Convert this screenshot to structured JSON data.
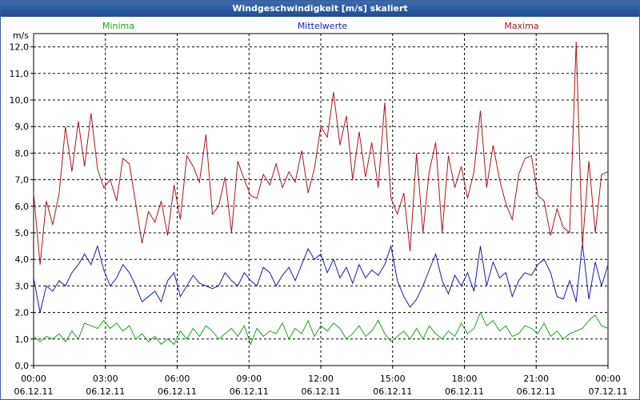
{
  "window": {
    "title": "Windgeschwindigkeit [m/s] skaliert"
  },
  "colors": {
    "minima": "#13a813",
    "mittel": "#1a1aae",
    "maxima": "#b01418",
    "grid": "#000000",
    "title_bg": "#2a5aa0"
  },
  "chart_data": {
    "type": "line",
    "title": "Windgeschwindigkeit [m/s] skaliert",
    "ylabel": "m/s",
    "ylim": [
      0,
      12.5
    ],
    "xlim": [
      0,
      24
    ],
    "grid": true,
    "legend_placement": "top",
    "y_ticks": [
      "0,0",
      "1,0",
      "2,0",
      "3,0",
      "4,0",
      "5,0",
      "6,0",
      "7,0",
      "8,0",
      "9,0",
      "10,0",
      "11,0",
      "12,0"
    ],
    "x_ticks": [
      {
        "time": "00:00",
        "date": "06.12.11"
      },
      {
        "time": "03:00",
        "date": "06.12.11"
      },
      {
        "time": "06:00",
        "date": "06.12.11"
      },
      {
        "time": "09:00",
        "date": "06.12.11"
      },
      {
        "time": "12:00",
        "date": "06.12.11"
      },
      {
        "time": "15:00",
        "date": "06.12.11"
      },
      {
        "time": "18:00",
        "date": "06.12.11"
      },
      {
        "time": "21:00",
        "date": "06.12.11"
      },
      {
        "time": "00:00",
        "date": "07.12.11"
      }
    ],
    "series": [
      {
        "name": "Minima",
        "x": [
          0,
          0.27,
          0.53,
          0.8,
          1.07,
          1.33,
          1.6,
          1.87,
          2.13,
          2.4,
          2.67,
          2.93,
          3.2,
          3.47,
          3.73,
          4,
          4.27,
          4.53,
          4.8,
          5.07,
          5.33,
          5.6,
          5.87,
          6.13,
          6.4,
          6.67,
          6.93,
          7.2,
          7.47,
          7.73,
          8,
          8.27,
          8.53,
          8.8,
          9.07,
          9.33,
          9.6,
          9.87,
          10.13,
          10.4,
          10.67,
          10.93,
          11.2,
          11.47,
          11.73,
          12,
          12.27,
          12.53,
          12.8,
          13.07,
          13.33,
          13.6,
          13.87,
          14.13,
          14.4,
          14.67,
          14.93,
          15.2,
          15.47,
          15.73,
          16,
          16.27,
          16.53,
          16.8,
          17.07,
          17.33,
          17.6,
          17.87,
          18.13,
          18.4,
          18.67,
          18.93,
          19.2,
          19.47,
          19.73,
          20,
          20.27,
          20.53,
          20.8,
          21.07,
          21.33,
          21.6,
          21.87,
          22.13,
          22.4,
          22.67,
          22.93,
          23.2,
          23.47,
          23.73,
          24
        ],
        "values": [
          1.1,
          0.9,
          1.1,
          1.0,
          1.2,
          0.9,
          1.3,
          1.0,
          1.6,
          1.5,
          1.4,
          1.7,
          1.4,
          1.6,
          1.3,
          1.5,
          1.0,
          1.2,
          0.9,
          1.1,
          0.8,
          1.0,
          0.8,
          1.3,
          1.0,
          1.4,
          1.1,
          1.5,
          1.3,
          1.0,
          1.2,
          1.4,
          1.1,
          1.5,
          0.8,
          1.4,
          1.1,
          1.3,
          1.2,
          1.6,
          1.0,
          1.4,
          1.2,
          1.7,
          1.1,
          1.5,
          1.3,
          1.6,
          1.4,
          1.0,
          1.2,
          1.5,
          1.1,
          1.3,
          1.7,
          1.2,
          0.9,
          1.1,
          1.3,
          1.0,
          1.4,
          1.0,
          1.5,
          1.2,
          1.0,
          1.3,
          1.1,
          1.6,
          1.2,
          1.4,
          2.0,
          1.5,
          1.7,
          1.3,
          1.5,
          1.1,
          1.2,
          1.5,
          1.4,
          1.2,
          1.6,
          1.1,
          1.3,
          1.0,
          1.2,
          1.3,
          1.4,
          1.7,
          1.9,
          1.5,
          1.4
        ]
      },
      {
        "name": "Mittelwerte",
        "x": [
          0,
          0.27,
          0.53,
          0.8,
          1.07,
          1.33,
          1.6,
          1.87,
          2.13,
          2.4,
          2.67,
          2.93,
          3.2,
          3.47,
          3.73,
          4,
          4.27,
          4.53,
          4.8,
          5.07,
          5.33,
          5.6,
          5.87,
          6.13,
          6.4,
          6.67,
          6.93,
          7.2,
          7.47,
          7.73,
          8,
          8.27,
          8.53,
          8.8,
          9.07,
          9.33,
          9.6,
          9.87,
          10.13,
          10.4,
          10.67,
          10.93,
          11.2,
          11.47,
          11.73,
          12,
          12.27,
          12.53,
          12.8,
          13.07,
          13.33,
          13.6,
          13.87,
          14.13,
          14.4,
          14.67,
          14.93,
          15.2,
          15.47,
          15.73,
          16,
          16.27,
          16.53,
          16.8,
          17.07,
          17.33,
          17.6,
          17.87,
          18.13,
          18.4,
          18.67,
          18.93,
          19.2,
          19.47,
          19.73,
          20,
          20.27,
          20.53,
          20.8,
          21.07,
          21.33,
          21.6,
          21.87,
          22.13,
          22.4,
          22.67,
          22.93,
          23.2,
          23.47,
          23.73,
          24
        ],
        "values": [
          3.3,
          2.0,
          3.0,
          2.8,
          3.2,
          3.0,
          3.5,
          3.8,
          4.2,
          3.8,
          4.5,
          3.6,
          3.0,
          3.3,
          3.8,
          3.5,
          3.0,
          2.4,
          2.6,
          2.8,
          2.4,
          3.2,
          3.5,
          2.6,
          3.0,
          3.4,
          3.1,
          3.0,
          2.9,
          3.0,
          3.5,
          3.2,
          3.0,
          3.5,
          3.2,
          3.0,
          3.7,
          3.5,
          3.0,
          3.4,
          3.7,
          3.2,
          3.8,
          4.4,
          4.0,
          4.2,
          3.5,
          4.0,
          3.3,
          3.7,
          3.1,
          3.8,
          3.3,
          3.6,
          3.4,
          3.8,
          4.5,
          3.2,
          2.6,
          2.2,
          2.5,
          3.0,
          3.6,
          4.2,
          3.2,
          2.7,
          3.4,
          3.0,
          3.5,
          2.8,
          4.5,
          3.0,
          3.9,
          3.3,
          3.5,
          2.6,
          3.2,
          3.5,
          3.4,
          3.8,
          4.0,
          3.5,
          2.6,
          2.5,
          3.2,
          2.4,
          4.6,
          2.5,
          3.9,
          3.0,
          3.8
        ]
      },
      {
        "name": "Maxima",
        "x": [
          0,
          0.27,
          0.53,
          0.8,
          1.07,
          1.33,
          1.6,
          1.87,
          2.13,
          2.4,
          2.67,
          2.93,
          3.2,
          3.47,
          3.73,
          4,
          4.27,
          4.53,
          4.8,
          5.07,
          5.33,
          5.6,
          5.87,
          6.13,
          6.4,
          6.67,
          6.93,
          7.2,
          7.47,
          7.73,
          8,
          8.27,
          8.53,
          8.8,
          9.07,
          9.33,
          9.6,
          9.87,
          10.13,
          10.4,
          10.67,
          10.93,
          11.2,
          11.47,
          11.73,
          12,
          12.27,
          12.53,
          12.8,
          13.07,
          13.33,
          13.6,
          13.87,
          14.13,
          14.4,
          14.67,
          14.93,
          15.2,
          15.47,
          15.73,
          16,
          16.27,
          16.53,
          16.8,
          17.07,
          17.33,
          17.6,
          17.87,
          18.13,
          18.4,
          18.67,
          18.93,
          19.2,
          19.47,
          19.73,
          20,
          20.27,
          20.53,
          20.8,
          21.07,
          21.33,
          21.6,
          21.87,
          22.13,
          22.4,
          22.67,
          22.93,
          23.2,
          23.47,
          23.73,
          24
        ],
        "values": [
          6.5,
          3.8,
          6.2,
          5.3,
          6.5,
          9.0,
          7.3,
          9.2,
          7.5,
          9.5,
          7.4,
          6.7,
          7.0,
          6.2,
          7.8,
          7.6,
          6.1,
          4.6,
          5.8,
          5.4,
          6.2,
          4.9,
          6.8,
          5.5,
          7.9,
          7.5,
          6.9,
          8.7,
          5.7,
          6.0,
          7.1,
          5.0,
          7.7,
          7.0,
          6.4,
          6.3,
          7.2,
          6.8,
          7.6,
          6.7,
          7.3,
          6.9,
          8.1,
          6.5,
          7.4,
          9.0,
          8.6,
          10.3,
          8.3,
          9.4,
          7.0,
          8.8,
          7.1,
          8.4,
          6.7,
          9.9,
          6.3,
          5.7,
          6.5,
          4.3,
          8.0,
          5.0,
          7.3,
          8.4,
          5.0,
          7.9,
          6.7,
          7.5,
          6.3,
          7.3,
          9.6,
          6.7,
          8.3,
          7.0,
          6.1,
          5.5,
          7.2,
          7.8,
          7.9,
          6.4,
          6.2,
          4.9,
          5.9,
          5.2,
          5.0,
          12.2,
          4.5,
          7.7,
          5.0,
          7.2,
          7.3
        ]
      }
    ]
  }
}
